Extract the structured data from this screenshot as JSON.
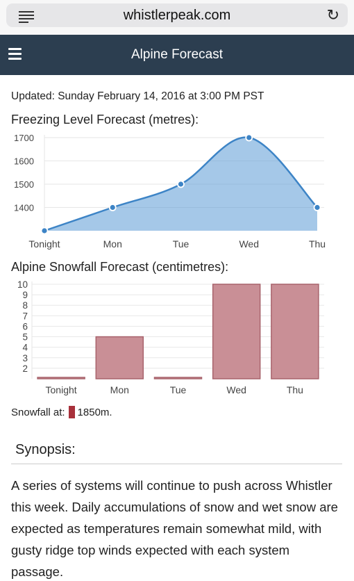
{
  "browser": {
    "url": "whistlerpeak.com"
  },
  "header": {
    "title": "Alpine Forecast"
  },
  "updated": "Updated: Sunday February 14, 2016 at 3:00 PM PST",
  "freezing": {
    "title": "Freezing Level Forecast (metres):"
  },
  "snowfall": {
    "title": "Alpine Snowfall Forecast (centimetres):"
  },
  "legend": {
    "label": "Snowfall at:",
    "value": "1850m.",
    "color": "#a8313b"
  },
  "synopsis": {
    "title": "Synopsis:",
    "text": "A series of systems will continue to push across Whistler this week. Daily accumulations of snow and wet snow are expected as temperatures remain somewhat mild, with gusty ridge top winds expected with each system passage."
  },
  "chart_data": [
    {
      "type": "area",
      "title": "Freezing Level Forecast (metres):",
      "categories": [
        "Tonight",
        "Mon",
        "Tue",
        "Wed",
        "Thu"
      ],
      "values": [
        1300,
        1400,
        1500,
        1700,
        1400
      ],
      "ylim": [
        1300,
        1700
      ],
      "yticks": [
        1400,
        1500,
        1600,
        1700
      ],
      "color": "#5b9bd5",
      "grid": true
    },
    {
      "type": "bar",
      "title": "Alpine Snowfall Forecast (centimetres):",
      "categories": [
        "Tonight",
        "Mon",
        "Tue",
        "Wed",
        "Thu"
      ],
      "values": [
        1,
        5,
        1,
        10,
        10
      ],
      "ylim": [
        1,
        10
      ],
      "yticks": [
        2,
        3,
        4,
        5,
        6,
        7,
        8,
        9,
        10
      ],
      "color": "#c98f96",
      "grid": true
    }
  ]
}
